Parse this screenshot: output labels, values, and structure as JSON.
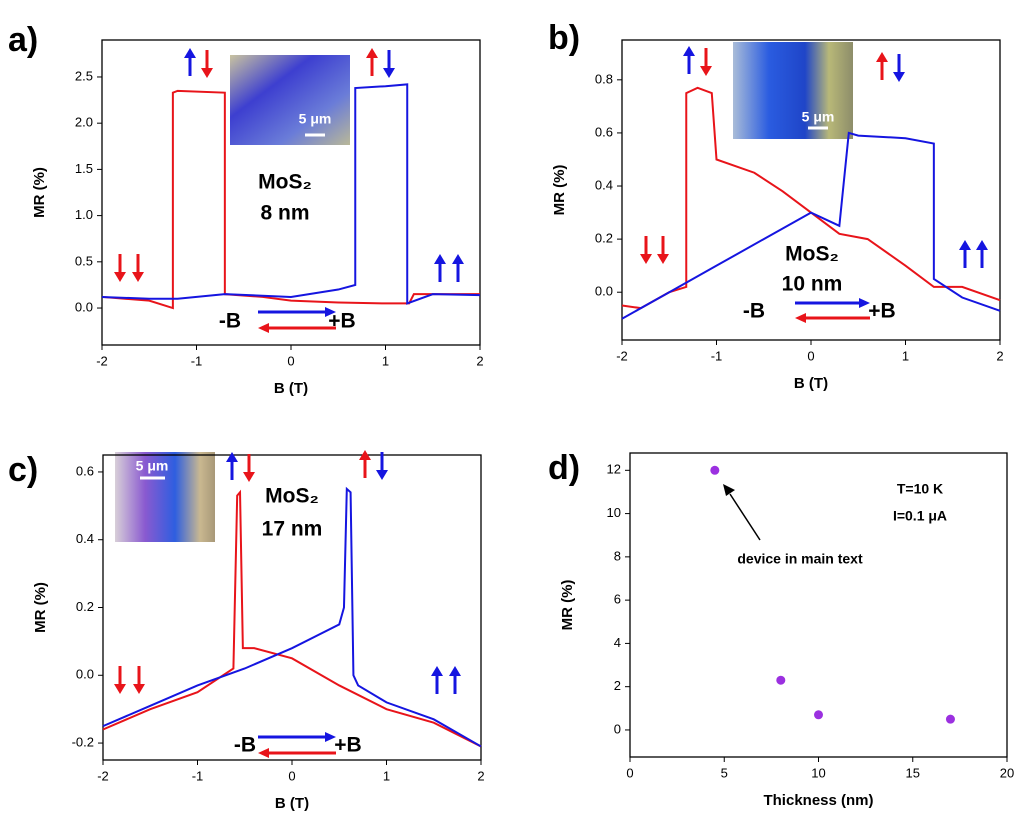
{
  "chart_data": [
    {
      "type": "line",
      "panel_label": "a)",
      "xlabel": "B (T)",
      "ylabel": "MR (%)",
      "xlim": [
        -2,
        2
      ],
      "ylim": [
        -0.4,
        2.9
      ],
      "xticks": [
        -2,
        -1,
        0,
        1,
        2
      ],
      "yticks": [
        {
          "value": 0,
          "label": "0.0"
        },
        0.5,
        {
          "value": 1,
          "label": "1.0"
        },
        1.5,
        {
          "value": 2,
          "label": "2.0"
        },
        2.5
      ],
      "series": [
        {
          "color": "#e8141a",
          "x": [
            -2,
            -1.5,
            -1.25,
            -1.25,
            -1.2,
            -0.7,
            -0.7,
            -0.3,
            0,
            0.5,
            1,
            1.25,
            1.3,
            2
          ],
          "values": [
            0.12,
            0.08,
            0.0,
            2.33,
            2.35,
            2.33,
            0.15,
            0.12,
            0.08,
            0.06,
            0.05,
            0.05,
            0.15,
            0.15
          ]
        },
        {
          "color": "#1515e0",
          "x": [
            -2,
            -1.5,
            -1.2,
            -0.7,
            0,
            0.5,
            0.68,
            0.68,
            1,
            1.23,
            1.23,
            1.5,
            2
          ],
          "values": [
            0.12,
            0.1,
            0.1,
            0.15,
            0.12,
            0.2,
            0.25,
            2.38,
            2.4,
            2.42,
            0.05,
            0.15,
            0.14
          ]
        }
      ],
      "annotations": [
        "MoS₂",
        "8 nm",
        "-B",
        "+B",
        "5 μm"
      ]
    },
    {
      "type": "line",
      "panel_label": "b)",
      "xlabel": "B (T)",
      "ylabel": "MR (%)",
      "xlim": [
        -2,
        2
      ],
      "ylim": [
        -0.18,
        0.95
      ],
      "xticks": [
        -2,
        -1,
        0,
        1,
        2
      ],
      "yticks": [
        {
          "value": 0,
          "label": "0.0"
        },
        0.2,
        0.4,
        0.6,
        0.8
      ],
      "series": [
        {
          "color": "#e8141a",
          "x": [
            -2,
            -1.8,
            -1.5,
            -1.32,
            -1.32,
            -1.2,
            -1.05,
            -1.0,
            -0.6,
            -0.3,
            0,
            0.3,
            0.6,
            1,
            1.3,
            1.6,
            2
          ],
          "values": [
            -0.05,
            -0.06,
            0.0,
            0.02,
            0.75,
            0.77,
            0.75,
            0.5,
            0.45,
            0.38,
            0.3,
            0.22,
            0.2,
            0.1,
            0.02,
            0.02,
            -0.03
          ]
        },
        {
          "color": "#1515e0",
          "x": [
            -2,
            -1.5,
            -1.0,
            -0.5,
            0,
            0.3,
            0.4,
            0.5,
            1,
            1.3,
            1.3,
            1.6,
            2
          ],
          "values": [
            -0.1,
            0.0,
            0.1,
            0.2,
            0.3,
            0.25,
            0.6,
            0.59,
            0.58,
            0.56,
            0.05,
            -0.02,
            -0.07
          ]
        }
      ],
      "annotations": [
        "MoS₂",
        "10 nm",
        "-B",
        "+B",
        "5 μm"
      ]
    },
    {
      "type": "line",
      "panel_label": "c)",
      "xlabel": "B (T)",
      "ylabel": "MR (%)",
      "xlim": [
        -2,
        2
      ],
      "ylim": [
        -0.25,
        0.65
      ],
      "xticks": [
        -2,
        -1,
        0,
        1,
        2
      ],
      "yticks": [
        -0.2,
        {
          "value": 0,
          "label": "0.0"
        },
        0.2,
        0.4,
        0.6
      ],
      "series": [
        {
          "color": "#e8141a",
          "x": [
            -2,
            -1.5,
            -1,
            -0.62,
            -0.58,
            -0.55,
            -0.52,
            -0.4,
            0,
            0.5,
            1,
            1.5,
            2
          ],
          "values": [
            -0.16,
            -0.1,
            -0.05,
            0.02,
            0.53,
            0.54,
            0.08,
            0.08,
            0.05,
            -0.03,
            -0.1,
            -0.14,
            -0.21
          ]
        },
        {
          "color": "#1515e0",
          "x": [
            -2,
            -1.5,
            -1,
            -0.5,
            0,
            0.5,
            0.55,
            0.58,
            0.62,
            0.65,
            0.7,
            1,
            1.5,
            2
          ],
          "values": [
            -0.15,
            -0.09,
            -0.03,
            0.02,
            0.08,
            0.15,
            0.2,
            0.55,
            0.54,
            0.0,
            -0.03,
            -0.08,
            -0.13,
            -0.21
          ]
        }
      ],
      "annotations": [
        "MoS₂",
        "17 nm",
        "-B",
        "+B",
        "5 μm"
      ]
    },
    {
      "type": "scatter",
      "panel_label": "d)",
      "xlabel": "Thickness (nm)",
      "ylabel": "MR (%)",
      "xlim": [
        0,
        20
      ],
      "ylim": [
        -1.25,
        12.8
      ],
      "xticks": [
        0,
        5,
        10,
        15,
        20
      ],
      "yticks": [
        0,
        2,
        4,
        6,
        8,
        10,
        12
      ],
      "x": [
        4.5,
        8,
        10,
        17
      ],
      "values": [
        12,
        2.3,
        0.7,
        0.5
      ],
      "color": "#9b30e0",
      "annotations": [
        "T=10 K",
        "I=0.1 μA",
        "device in main text"
      ]
    }
  ]
}
